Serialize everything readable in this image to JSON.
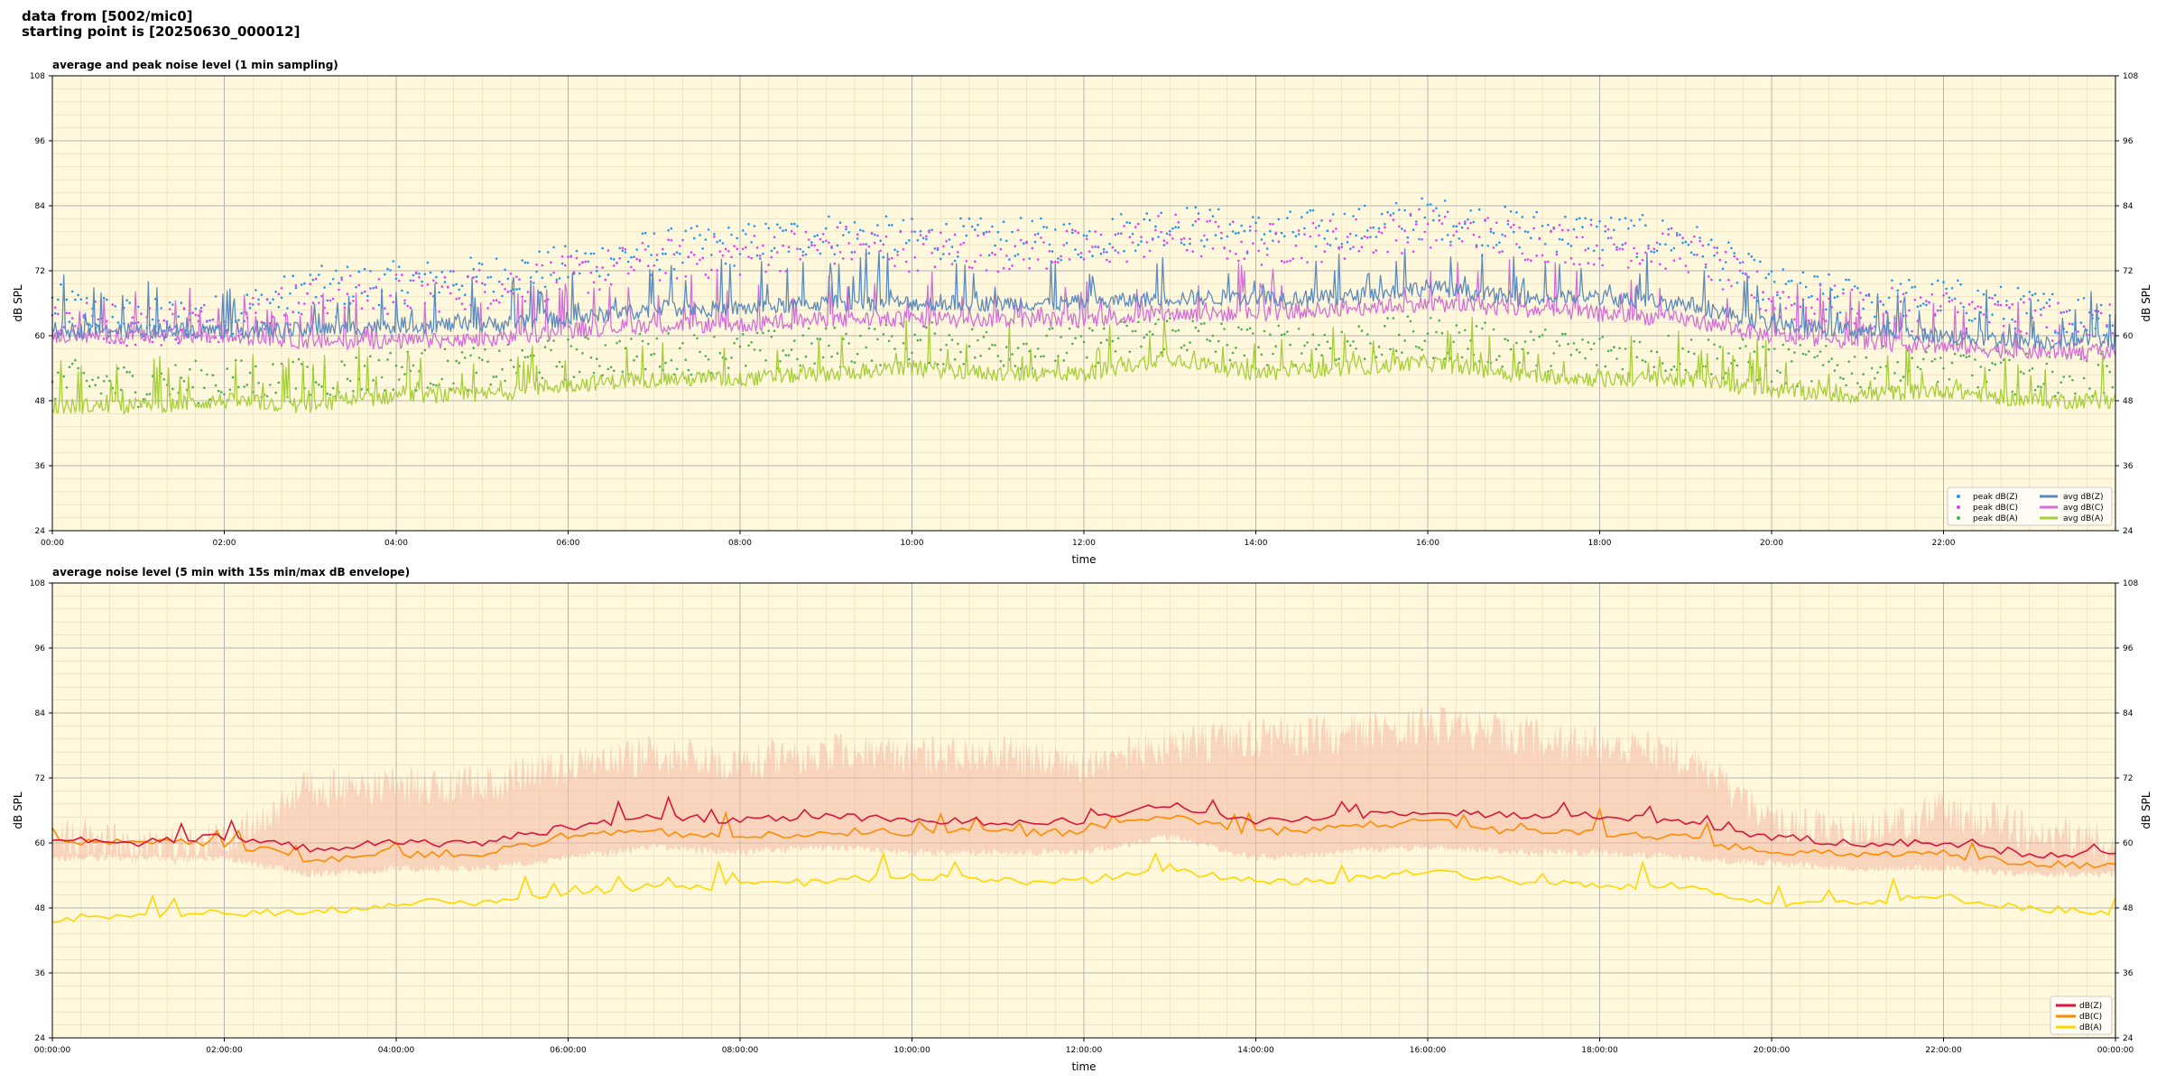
{
  "header": {
    "line1": "data from [5002/mic0]",
    "line2": "starting point is [20250630_000012]"
  },
  "colors": {
    "background": "#ffffff",
    "plot_bg": "#fff8dc",
    "peak_z": "#2196f3",
    "peak_c": "#e040fb",
    "peak_a": "#4caf50",
    "avg_z": "#5b8bbf",
    "avg_c": "#d46fd8",
    "avg_a": "#a6cf3a",
    "envelope": "#f4b8a4",
    "z": "#dc143c",
    "c": "#ff8c00",
    "a": "#ffd700"
  },
  "chart_data": [
    {
      "type": "line",
      "title": "average and peak noise level (1 min sampling)",
      "xlabel": "time",
      "ylabel": "dB SPL",
      "ylim": [
        24,
        108
      ],
      "yticks": [
        24,
        36,
        48,
        60,
        72,
        84,
        96,
        108
      ],
      "xlim_hours": [
        0,
        24
      ],
      "xticks": [
        "00:00",
        "02:00",
        "04:00",
        "06:00",
        "08:00",
        "10:00",
        "12:00",
        "14:00",
        "16:00",
        "18:00",
        "20:00",
        "22:00"
      ],
      "grid": true,
      "legend_position": "bottom-right",
      "legend": [
        "peak dB(Z)",
        "peak dB(C)",
        "peak dB(A)",
        "avg dB(Z)",
        "avg dB(C)",
        "avg dB(A)"
      ],
      "hours": [
        0,
        1,
        2,
        3,
        4,
        5,
        6,
        7,
        8,
        9,
        10,
        11,
        12,
        13,
        14,
        15,
        16,
        17,
        18,
        19,
        20,
        21,
        22,
        23,
        24
      ],
      "series": [
        {
          "name": "avg dB(Z)",
          "kind": "line",
          "values": [
            61,
            61,
            61,
            61,
            62,
            62,
            63,
            65,
            65,
            66,
            66,
            66,
            66,
            67,
            67,
            67,
            69,
            67,
            67,
            66,
            62,
            61,
            60,
            59,
            59
          ]
        },
        {
          "name": "avg dB(C)",
          "kind": "line",
          "values": [
            60,
            60,
            60,
            59,
            59,
            59,
            61,
            62,
            62,
            63,
            63,
            63,
            63,
            64,
            64,
            65,
            66,
            65,
            64,
            63,
            60,
            59,
            58,
            57,
            57
          ]
        },
        {
          "name": "avg dB(A)",
          "kind": "line",
          "values": [
            47,
            47,
            48,
            47,
            49,
            49,
            51,
            52,
            52,
            53,
            54,
            53,
            53,
            56,
            53,
            54,
            55,
            53,
            52,
            52,
            50,
            49,
            50,
            48,
            48
          ]
        },
        {
          "name": "peak dB(Z)",
          "kind": "scatter",
          "values": [
            65,
            62,
            63,
            68,
            69,
            70,
            72,
            75,
            76,
            78,
            77,
            77,
            77,
            80,
            78,
            79,
            81,
            79,
            78,
            77,
            68,
            66,
            66,
            64,
            63
          ]
        },
        {
          "name": "peak dB(C)",
          "kind": "scatter",
          "values": [
            63,
            61,
            62,
            66,
            67,
            68,
            70,
            73,
            74,
            76,
            75,
            75,
            75,
            78,
            76,
            77,
            79,
            77,
            76,
            75,
            66,
            64,
            64,
            62,
            61
          ]
        },
        {
          "name": "peak dB(A)",
          "kind": "scatter",
          "values": [
            51,
            50,
            51,
            51,
            53,
            53,
            55,
            56,
            56,
            57,
            58,
            57,
            57,
            60,
            57,
            58,
            59,
            57,
            56,
            56,
            54,
            53,
            54,
            52,
            52
          ]
        }
      ]
    },
    {
      "type": "line",
      "title": "average noise level (5 min with 15s min/max dB envelope)",
      "xlabel": "time",
      "ylabel": "dB SPL",
      "ylim": [
        24,
        108
      ],
      "yticks": [
        24,
        36,
        48,
        60,
        72,
        84,
        96,
        108
      ],
      "xlim_hours": [
        0,
        24
      ],
      "xticks": [
        "00:00:00",
        "02:00:00",
        "04:00:00",
        "06:00:00",
        "08:00:00",
        "10:00:00",
        "12:00:00",
        "14:00:00",
        "16:00:00",
        "18:00:00",
        "20:00:00",
        "22:00:00",
        "00:00:00"
      ],
      "grid": true,
      "legend_position": "bottom-right",
      "legend": [
        "dB(Z)",
        "dB(C)",
        "dB(A)"
      ],
      "hours": [
        0,
        1,
        2,
        3,
        4,
        5,
        6,
        7,
        8,
        9,
        10,
        11,
        12,
        13,
        14,
        15,
        16,
        17,
        18,
        19,
        20,
        21,
        22,
        23,
        24
      ],
      "series": [
        {
          "name": "dB(Z)",
          "kind": "line",
          "values": [
            61,
            60,
            61,
            59,
            60,
            60,
            63,
            65,
            64,
            65,
            64,
            64,
            64,
            67,
            64,
            65,
            66,
            65,
            65,
            64,
            61,
            60,
            60,
            58,
            58
          ]
        },
        {
          "name": "dB(C)",
          "kind": "line",
          "values": [
            60,
            60,
            60,
            57,
            58,
            58,
            61,
            62,
            61,
            62,
            62,
            62,
            62,
            65,
            62,
            63,
            64,
            62,
            62,
            61,
            58,
            58,
            58,
            56,
            56
          ]
        },
        {
          "name": "dB(A)",
          "kind": "line",
          "values": [
            46,
            47,
            47,
            47,
            49,
            49,
            51,
            52,
            52,
            53,
            54,
            53,
            53,
            55,
            53,
            53,
            55,
            53,
            52,
            52,
            49,
            49,
            50,
            48,
            47
          ]
        },
        {
          "name": "envelope min",
          "kind": "band_low",
          "values": [
            58,
            58,
            58,
            55,
            56,
            56,
            58,
            60,
            59,
            60,
            59,
            59,
            59,
            62,
            58,
            59,
            60,
            59,
            59,
            58,
            57,
            56,
            56,
            55,
            55
          ]
        },
        {
          "name": "envelope max",
          "kind": "band_high",
          "values": [
            66,
            63,
            64,
            74,
            74,
            75,
            78,
            80,
            79,
            81,
            80,
            80,
            79,
            82,
            83,
            84,
            86,
            84,
            82,
            80,
            68,
            66,
            70,
            66,
            64
          ]
        }
      ]
    }
  ]
}
